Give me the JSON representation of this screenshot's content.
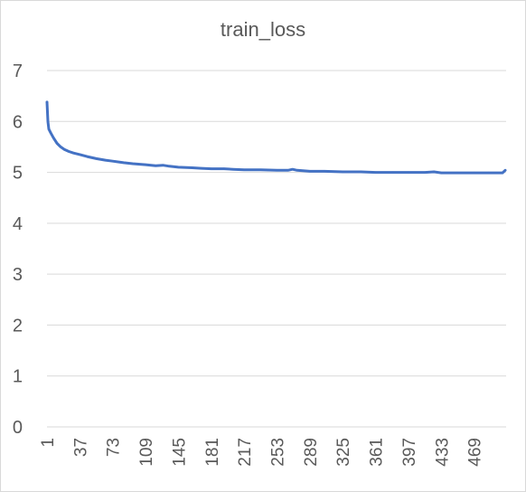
{
  "chart_data": {
    "type": "line",
    "title": "train_loss",
    "xlabel": "",
    "ylabel": "",
    "ylim": [
      0,
      7
    ],
    "yticks": [
      0,
      1,
      2,
      3,
      4,
      5,
      6,
      7
    ],
    "xlim": [
      1,
      504
    ],
    "xticks": [
      1,
      37,
      73,
      109,
      145,
      181,
      217,
      253,
      289,
      325,
      361,
      397,
      433,
      469
    ],
    "grid": true,
    "legend": "none",
    "series": [
      {
        "color": "#4472c4",
        "points": [
          [
            1,
            6.38
          ],
          [
            2,
            6.0
          ],
          [
            3,
            5.85
          ],
          [
            5,
            5.78
          ],
          [
            8,
            5.68
          ],
          [
            12,
            5.57
          ],
          [
            16,
            5.5
          ],
          [
            20,
            5.45
          ],
          [
            25,
            5.41
          ],
          [
            30,
            5.38
          ],
          [
            37,
            5.35
          ],
          [
            45,
            5.31
          ],
          [
            55,
            5.27
          ],
          [
            65,
            5.24
          ],
          [
            73,
            5.22
          ],
          [
            85,
            5.19
          ],
          [
            95,
            5.17
          ],
          [
            109,
            5.15
          ],
          [
            120,
            5.13
          ],
          [
            128,
            5.14
          ],
          [
            135,
            5.12
          ],
          [
            145,
            5.1
          ],
          [
            160,
            5.09
          ],
          [
            170,
            5.08
          ],
          [
            181,
            5.07
          ],
          [
            195,
            5.07
          ],
          [
            205,
            5.06
          ],
          [
            217,
            5.05
          ],
          [
            235,
            5.05
          ],
          [
            253,
            5.04
          ],
          [
            265,
            5.04
          ],
          [
            270,
            5.06
          ],
          [
            275,
            5.04
          ],
          [
            289,
            5.02
          ],
          [
            305,
            5.02
          ],
          [
            325,
            5.01
          ],
          [
            345,
            5.01
          ],
          [
            361,
            5.0
          ],
          [
            380,
            5.0
          ],
          [
            397,
            5.0
          ],
          [
            415,
            5.0
          ],
          [
            425,
            5.01
          ],
          [
            433,
            4.99
          ],
          [
            450,
            4.99
          ],
          [
            469,
            4.99
          ],
          [
            485,
            4.99
          ],
          [
            500,
            4.99
          ],
          [
            503,
            5.04
          ]
        ]
      }
    ]
  }
}
